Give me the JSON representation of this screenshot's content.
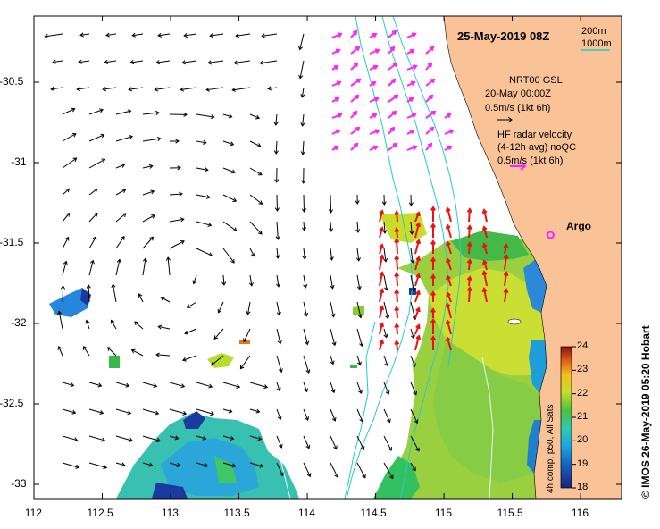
{
  "title": "25-May-2019 08Z",
  "depth_legend": {
    "line1": "200m",
    "line2": "1000m",
    "color": "#22cccc"
  },
  "gsl_legend": {
    "line1": "NRT00 GSL",
    "line2": "20-May 00:00Z",
    "line3": "0.5m/s (1kt 6h)"
  },
  "radar_legend": {
    "line1": "HF radar velocity",
    "line2": "(4-12h avg) noQC",
    "line3": "0.5m/s (1kt 6h)",
    "color": "#ff22ff"
  },
  "argo": {
    "label": "Argo",
    "color": "#ff22ff",
    "lon": 115.78,
    "lat": -31.45
  },
  "credit": "© IMOS 26-May-2019 05:20 Hobart",
  "colorbar": {
    "label": "4h comp, p50, All Sats",
    "ticks": [
      "24",
      "23",
      "22",
      "21",
      "20",
      "19",
      "18"
    ],
    "min": 18,
    "max": 24
  },
  "x_ticks": [
    "112",
    "112.5",
    "113",
    "113.5",
    "114",
    "114.5",
    "115",
    "115.5",
    "116"
  ],
  "y_ticks": [
    "-30.5",
    "-31",
    "-31.5",
    "-32",
    "-32.5",
    "-33"
  ],
  "colors": {
    "land": "#f9c397",
    "sst_low": "#1a2a8c",
    "sst_high": "#8a1010",
    "gsl_arrow": "#000000",
    "radar_south": "#ee1111",
    "radar_north": "#ff22ff"
  }
}
